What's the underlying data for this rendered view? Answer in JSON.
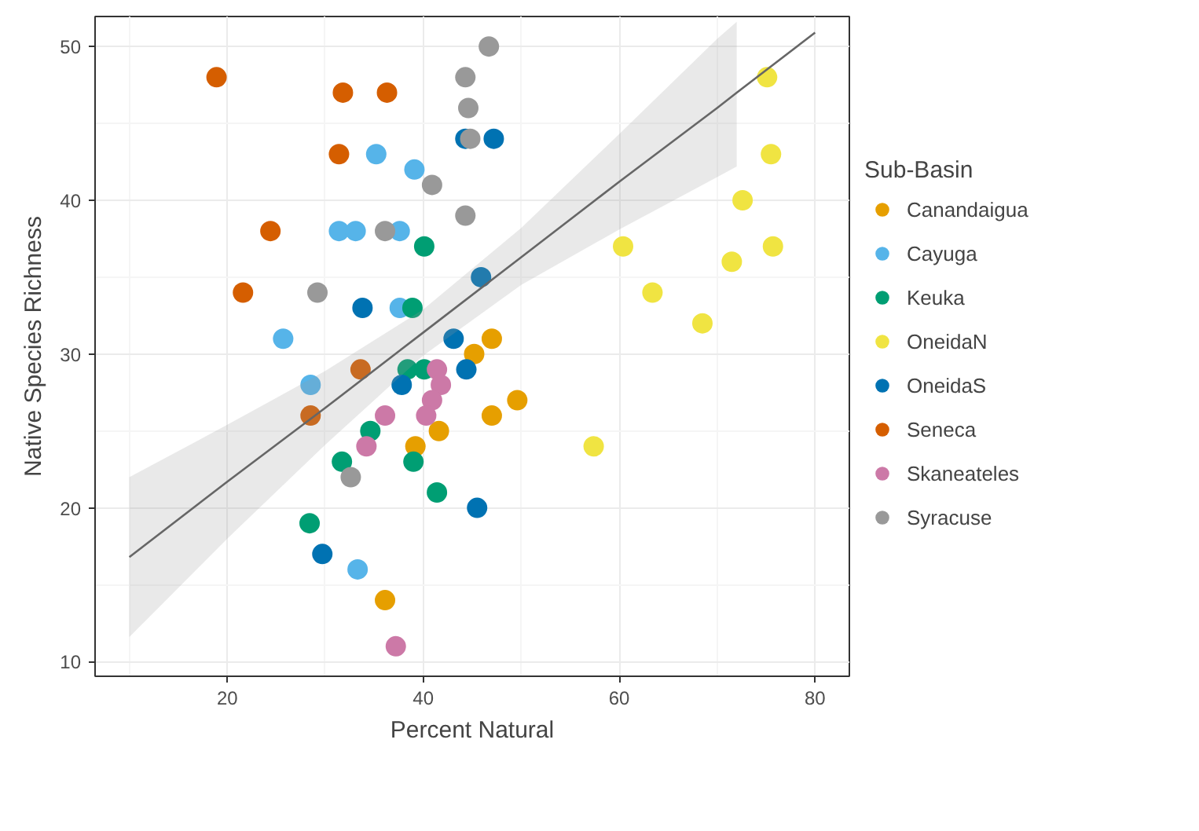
{
  "chart_data": {
    "type": "scatter",
    "xlabel": "Percent Natural",
    "ylabel": "Native Species Richness",
    "legend_title": "Sub-Basin",
    "xlim": [
      6.5,
      83.5
    ],
    "ylim": [
      9.05,
      51.95
    ],
    "xticks": [
      20,
      40,
      60,
      80
    ],
    "yticks": [
      10,
      20,
      30,
      40,
      50
    ],
    "grid": true,
    "legend": "right",
    "marker": "circle",
    "series": [
      {
        "name": "Canandaigua",
        "color": "#e69f00",
        "x": [
          36.1,
          39.2,
          41.6,
          47.0,
          45.2,
          47.0,
          49.6
        ],
        "values": [
          14,
          24,
          25,
          31,
          30,
          26,
          27
        ]
      },
      {
        "name": "Cayuga",
        "color": "#56b4e9",
        "x": [
          35.2,
          39.1,
          31.4,
          33.1,
          37.6,
          37.6,
          25.7,
          28.5,
          33.3
        ],
        "values": [
          43,
          42,
          38,
          38,
          38,
          33,
          31,
          28,
          16
        ]
      },
      {
        "name": "Keuka",
        "color": "#009e73",
        "x": [
          40.1,
          38.9,
          38.4,
          40.1,
          34.6,
          31.7,
          39.0,
          28.4,
          41.4
        ],
        "values": [
          37,
          33,
          29,
          29,
          25,
          23,
          23,
          19,
          21
        ]
      },
      {
        "name": "OneidaN",
        "color": "#f0e442",
        "x": [
          75.1,
          75.5,
          72.6,
          75.7,
          71.5,
          60.4,
          63.4,
          68.5,
          57.4
        ],
        "values": [
          48,
          43,
          40,
          37,
          36,
          37,
          34,
          32,
          24
        ]
      },
      {
        "name": "OneidaS",
        "color": "#0072b2",
        "x": [
          33.8,
          29.7,
          37.8,
          45.9,
          43.1,
          44.4,
          45.5,
          44.3,
          47.2
        ],
        "values": [
          33,
          17,
          28,
          35,
          31,
          29,
          20,
          44,
          44
        ]
      },
      {
        "name": "Seneca",
        "color": "#d55e00",
        "x": [
          18.9,
          31.8,
          36.3,
          31.4,
          24.4,
          21.6,
          33.6,
          28.5
        ],
        "values": [
          48,
          47,
          47,
          43,
          38,
          34,
          29,
          26
        ]
      },
      {
        "name": "Skaneateles",
        "color": "#cc79a7",
        "x": [
          36.1,
          34.2,
          37.2,
          41.4,
          41.8,
          40.9,
          40.3
        ],
        "values": [
          26,
          24,
          11,
          29,
          28,
          27,
          26
        ]
      },
      {
        "name": "Syracuse",
        "color": "#999999",
        "x": [
          36.1,
          29.2,
          32.6,
          40.9,
          46.7,
          44.3,
          44.6,
          44.8,
          44.3
        ],
        "values": [
          38,
          34,
          22,
          41,
          50,
          48,
          46,
          44,
          39
        ]
      },
      {
        "type": "line",
        "color": "#666666",
        "marker": "none",
        "x": [
          10,
          20,
          30,
          40,
          50,
          60,
          70,
          72,
          80
        ],
        "values": [
          16.8,
          21.7,
          26.5,
          31.4,
          36.3,
          41.2,
          46.0,
          47.0,
          50.9
        ],
        "lower": [
          11.6,
          18.0,
          24.1,
          29.9,
          34.5,
          38.1,
          41.5,
          42.2,
          null
        ],
        "upper": [
          22.0,
          25.4,
          28.9,
          32.9,
          38.2,
          44.3,
          50.5,
          51.6,
          null
        ]
      }
    ]
  }
}
